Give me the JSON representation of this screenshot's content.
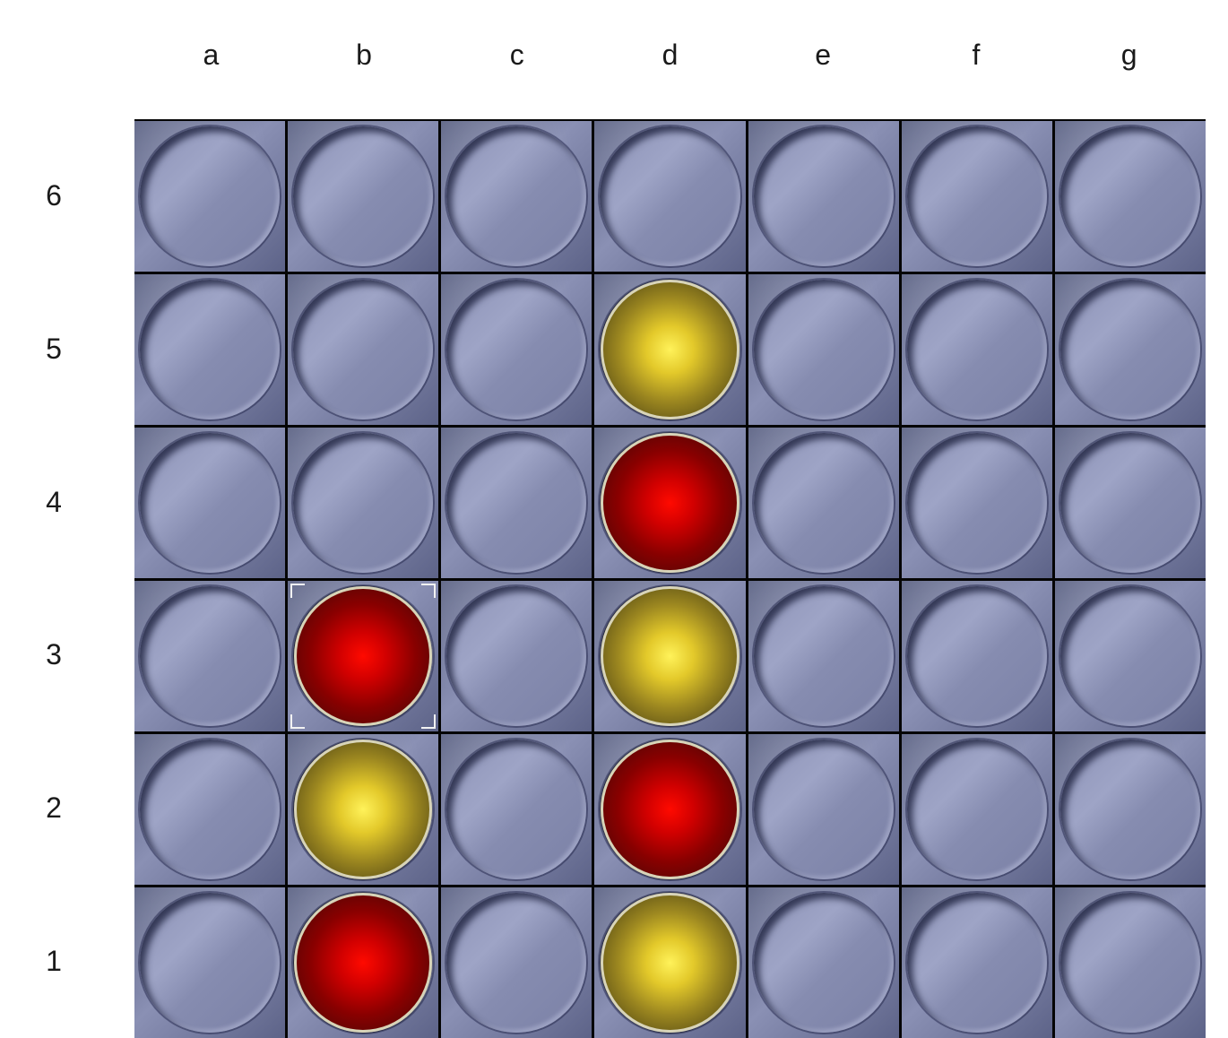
{
  "columns": [
    "a",
    "b",
    "c",
    "d",
    "e",
    "f",
    "g"
  ],
  "rows": [
    "6",
    "5",
    "4",
    "3",
    "2",
    "1"
  ],
  "board": [
    [
      "",
      "",
      "",
      "",
      "",
      "",
      ""
    ],
    [
      "",
      "",
      "",
      "yellow",
      "",
      "",
      ""
    ],
    [
      "",
      "",
      "",
      "red",
      "",
      "",
      ""
    ],
    [
      "",
      "red",
      "",
      "yellow",
      "",
      "",
      ""
    ],
    [
      "",
      "yellow",
      "",
      "red",
      "",
      "",
      ""
    ],
    [
      "",
      "red",
      "",
      "yellow",
      "",
      "",
      ""
    ]
  ],
  "highlighted_cell": "b3",
  "colors": {
    "red_piece": "#e00000",
    "yellow_piece": "#e8cf2e",
    "board": "#7c82a8",
    "grid_lines": "#050505"
  }
}
